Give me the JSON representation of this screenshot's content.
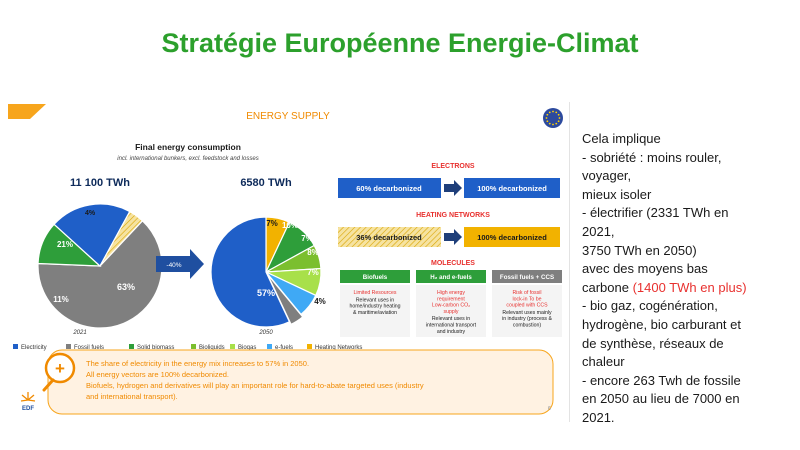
{
  "page": {
    "title": "Stratégie Européenne Energie-Climat"
  },
  "slide": {
    "header": "ENERGY SUPPLY",
    "chart_title": "Final energy consumption",
    "chart_subtitle": "incl. international bunkers, excl. feedstock and losses",
    "arrow_label": "-40%",
    "logo_text": "EDF",
    "page_number": "6",
    "electrons": {
      "title": "ELECTRONS",
      "from": "60% decarbonized",
      "to": "100% decarbonized",
      "from_color": "#1f5fc8",
      "to_color": "#1f5fc8"
    },
    "heating": {
      "title": "HEATING NETWORKS",
      "from": "36% decarbonized",
      "to": "100% decarbonized",
      "from_color": "#f2b200",
      "to_color": "#f2b200"
    },
    "molecules": {
      "title": "MOLECULES",
      "columns": [
        {
          "header": "Biofuels",
          "color": "#2e9e3a",
          "red": "Limited Resources",
          "lines": [
            "Relevant uses in",
            "home/industry heating",
            "& maritime/aviation"
          ]
        },
        {
          "header": "H₂ and e-fuels",
          "color": "#2e9e3a",
          "red": "High energy requirement Low-carbon CO₂ supply",
          "lines": [
            "Relevant uses in",
            "international transport",
            "and industry"
          ]
        },
        {
          "header": "Fossil fuels + CCS",
          "color": "#7f7f7f",
          "red": "Risk of fossil lock-in To be coupled with CCS",
          "lines": [
            "Relevant uses mainly",
            "in industry (process &",
            "combustion)"
          ]
        }
      ]
    },
    "callout": {
      "line1": "The share of electricity in the energy mix increases to 57% in 2050.",
      "line2": "All energy vectors are 100% decarbonized.",
      "line3": "Biofuels, hydrogen and derivatives will play an important role for hard-to-abate targeted uses (industry",
      "line4": "and international transport)."
    }
  },
  "chart_data": {
    "type": "pie",
    "title": "Final energy consumption",
    "subtitle": "incl. international bunkers, excl. feedstock and losses",
    "legend_position": "bottom",
    "legend": [
      {
        "name": "Electricity",
        "color": "#1f5fc8"
      },
      {
        "name": "Fossil fuels",
        "color": "#7f7f7f"
      },
      {
        "name": "Solid biomass",
        "color": "#2e9e3a"
      },
      {
        "name": "Bioliquids",
        "color": "#7bbf2e"
      },
      {
        "name": "Biogas",
        "color": "#a8e04a"
      },
      {
        "name": "e-fuels",
        "color": "#3fa9f5"
      },
      {
        "name": "Heating Networks",
        "color": "#f2b200"
      }
    ],
    "pies": [
      {
        "year": "2021",
        "total": "11 100 TWh",
        "slices": [
          {
            "name": "Fossil fuels",
            "value": 63,
            "label": "63%",
            "color": "#7f7f7f"
          },
          {
            "name": "Solid biomass",
            "value": 11,
            "label": "11%",
            "color": "#2e9e3a"
          },
          {
            "name": "Electricity",
            "value": 21,
            "label": "21%",
            "color": "#1f5fc8"
          },
          {
            "name": "Heating Networks",
            "value": 4,
            "label": "4%",
            "color": "#f6e3a1",
            "hatched": true
          }
        ]
      },
      {
        "year": "2050",
        "total": "6580 TWh",
        "slices": [
          {
            "name": "Heating Networks",
            "value": 7,
            "label": "7%",
            "color": "#f2b200"
          },
          {
            "name": "Solid biomass",
            "value": 10,
            "label": "10%",
            "color": "#2e9e3a"
          },
          {
            "name": "Bioliquids",
            "value": 7,
            "label": "7%",
            "color": "#7bbf2e"
          },
          {
            "name": "Biogas",
            "value": 8,
            "label": "8%",
            "color": "#a8e04a"
          },
          {
            "name": "e-fuels",
            "value": 7,
            "label": "7%",
            "color": "#3fa9f5"
          },
          {
            "name": "Fossil fuels",
            "value": 4,
            "label": "4%",
            "color": "#7f7f7f"
          },
          {
            "name": "Electricity",
            "value": 57,
            "label": "57%",
            "color": "#1f5fc8"
          }
        ]
      }
    ]
  },
  "notes": {
    "lines": [
      {
        "text": "Cela implique"
      },
      {
        "text": "- sobriété : moins rouler,"
      },
      {
        "text": "voyager,"
      },
      {
        "text": "mieux isoler"
      },
      {
        "text": "- électrifier (2331 TWh en"
      },
      {
        "text": "2021,"
      },
      {
        "text": "3750 TWh en 2050)"
      },
      {
        "text": "avec des moyens bas"
      },
      {
        "text": "carbone ",
        "red": "(1400 TWh en plus)"
      },
      {
        "text": "- bio gaz, cogénération,"
      },
      {
        "text": "hydrogène, bio carburant et"
      },
      {
        "text": "de synthèse, réseaux de"
      },
      {
        "text": "chaleur"
      },
      {
        "text": "- encore 263 Twh de fossile"
      },
      {
        "text": "en 2050 au lieu de 7000 en"
      },
      {
        "text": "2021."
      }
    ]
  }
}
